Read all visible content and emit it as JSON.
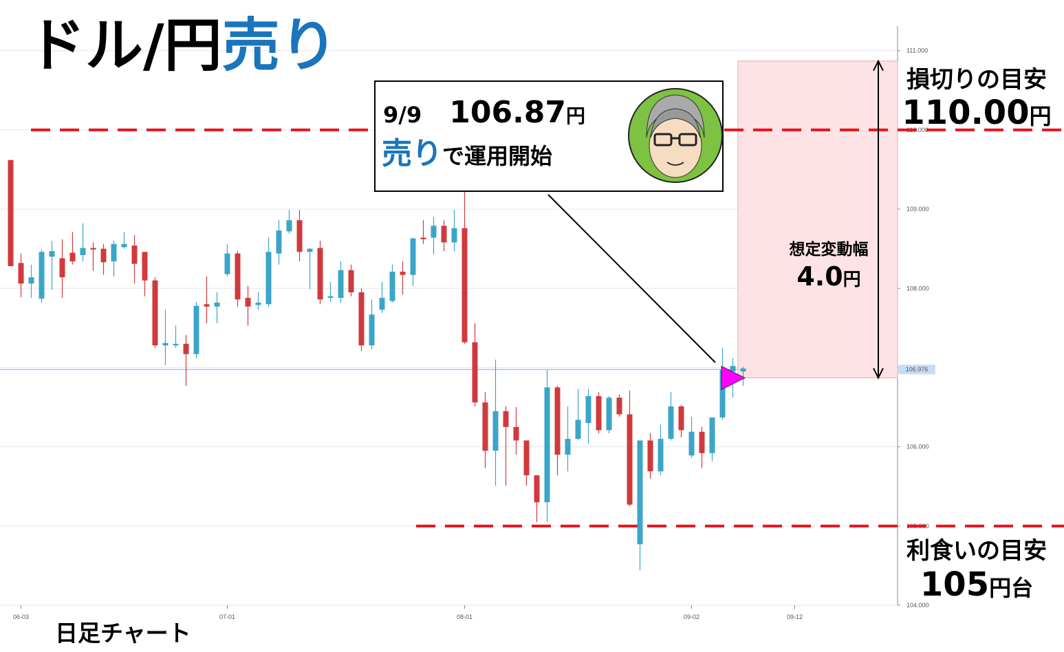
{
  "chart_data": {
    "type": "candlestick",
    "title": "ドル/円",
    "title_highlight": "売り",
    "x_label": "日足チャート",
    "categories": [
      null,
      "06-03",
      null,
      null,
      null,
      null,
      null,
      null,
      null,
      null,
      null,
      null,
      null,
      null,
      null,
      null,
      null,
      null,
      null,
      null,
      null,
      "07-01",
      null,
      null,
      null,
      null,
      null,
      null,
      null,
      null,
      null,
      null,
      null,
      null,
      null,
      null,
      null,
      null,
      null,
      null,
      null,
      null,
      null,
      null,
      "08-01",
      null,
      null,
      null,
      null,
      null,
      null,
      null,
      null,
      null,
      null,
      null,
      null,
      null,
      null,
      null,
      null,
      null,
      null,
      null,
      null,
      null,
      "09-02",
      null,
      null,
      null,
      null,
      null,
      null,
      null,
      null,
      null,
      "09-12",
      null,
      null,
      null,
      null,
      null,
      null,
      null,
      null,
      null
    ],
    "open": [
      109.62,
      108.32,
      108.06,
      107.87,
      108.4,
      108.38,
      108.45,
      108.42,
      108.51,
      108.5,
      108.34,
      108.52,
      108.54,
      108.46,
      108.1,
      107.28,
      107.28,
      107.3,
      107.17,
      107.8,
      107.77,
      108.18,
      108.44,
      107.88,
      107.79,
      107.8,
      108.44,
      108.72,
      108.86,
      108.46,
      108.51,
      107.88,
      107.88,
      108.23,
      107.95,
      107.28,
      107.73,
      107.84,
      108.21,
      108.17,
      108.64,
      108.64,
      108.79,
      108.58,
      108.76,
      107.32,
      106.56,
      105.95,
      106.45,
      106.25,
      106.08,
      105.64,
      105.3,
      106.75,
      105.9,
      106.1,
      106.3,
      106.64,
      106.21,
      106.62,
      106.41,
      104.77,
      106.08,
      105.69,
      106.1,
      106.51,
      105.89,
      106.19,
      105.92,
      106.37,
      106.95,
      106.95,
      null,
      null,
      null,
      null,
      null,
      null,
      null,
      null,
      null,
      null,
      null,
      null,
      null,
      null
    ],
    "high": [
      109.62,
      108.44,
      108.3,
      108.49,
      108.6,
      108.62,
      108.71,
      108.82,
      108.58,
      108.56,
      108.6,
      108.71,
      108.67,
      108.46,
      108.14,
      107.73,
      107.53,
      107.41,
      107.83,
      108.15,
      107.95,
      108.56,
      108.47,
      108.03,
      107.95,
      108.64,
      108.86,
      108.99,
      108.99,
      108.51,
      108.6,
      108.08,
      108.34,
      108.3,
      108.0,
      107.86,
      108.08,
      108.3,
      108.34,
      108.64,
      108.86,
      108.9,
      108.86,
      108.99,
      109.25,
      107.56,
      106.69,
      107.1,
      106.51,
      106.5,
      106.08,
      105.64,
      106.97,
      106.77,
      106.51,
      106.73,
      106.73,
      106.69,
      106.64,
      106.66,
      106.71,
      106.08,
      106.17,
      106.28,
      106.69,
      106.53,
      106.38,
      106.25,
      106.37,
      107.25,
      107.12,
      107.01,
      null,
      null,
      null,
      null,
      null,
      null,
      null,
      null,
      null,
      null,
      null,
      null,
      null,
      null
    ],
    "low": [
      108.28,
      107.89,
      107.88,
      107.82,
      107.98,
      107.88,
      108.3,
      108.34,
      108.22,
      108.17,
      108.15,
      108.5,
      108.06,
      107.9,
      107.25,
      107.03,
      107.25,
      106.77,
      107.12,
      107.56,
      107.56,
      108.15,
      107.77,
      107.53,
      107.73,
      107.77,
      108.3,
      108.69,
      108.34,
      107.99,
      107.8,
      107.83,
      107.82,
      107.9,
      107.21,
      107.23,
      107.69,
      107.82,
      107.92,
      108.03,
      108.56,
      108.43,
      108.47,
      108.47,
      107.3,
      106.51,
      105.73,
      105.51,
      105.51,
      105.9,
      105.51,
      105.05,
      105.05,
      105.64,
      105.69,
      106.08,
      106.04,
      106.17,
      106.17,
      106.38,
      105.25,
      104.44,
      105.6,
      105.64,
      106.08,
      106.12,
      105.86,
      105.73,
      105.82,
      106.34,
      106.62,
      106.77,
      null,
      null,
      null,
      null,
      null,
      null,
      null,
      null,
      null,
      null,
      null,
      null,
      null,
      null
    ],
    "close": [
      108.28,
      108.06,
      108.14,
      108.46,
      108.47,
      108.14,
      108.34,
      108.51,
      108.49,
      108.33,
      108.56,
      108.56,
      108.31,
      108.1,
      107.28,
      107.31,
      107.3,
      107.17,
      107.78,
      107.77,
      107.82,
      108.44,
      107.86,
      107.77,
      107.82,
      108.46,
      108.73,
      108.86,
      108.46,
      108.5,
      107.86,
      107.9,
      108.23,
      107.95,
      107.28,
      107.67,
      107.88,
      108.21,
      108.17,
      108.63,
      108.62,
      108.79,
      108.58,
      108.76,
      107.32,
      106.56,
      105.95,
      106.45,
      106.25,
      106.08,
      105.64,
      105.3,
      106.75,
      105.9,
      106.1,
      106.34,
      106.64,
      106.21,
      106.62,
      106.41,
      105.27,
      106.08,
      105.69,
      106.1,
      106.51,
      106.21,
      106.19,
      105.92,
      106.37,
      106.97,
      107.02,
      106.99,
      null,
      null,
      null,
      null,
      null,
      null,
      null,
      null,
      null,
      null,
      null,
      null,
      null,
      null
    ],
    "up_color": "#3ba5c9",
    "down_color": "#d03a3d",
    "grid": true,
    "ylim": [
      104,
      111.31
    ],
    "yticks": [
      {
        "value": 104,
        "label": "104.000"
      },
      {
        "value": 105,
        "label": "105.000"
      },
      {
        "value": 106,
        "label": "106.000"
      },
      {
        "value": 107,
        "label": "107.000"
      },
      {
        "value": 108,
        "label": "108.000"
      },
      {
        "value": 109,
        "label": "109.000"
      },
      {
        "value": 110,
        "label": "110.000"
      },
      {
        "value": 111,
        "label": "111.000"
      }
    ],
    "current_price": 106.976,
    "callout": {
      "date": "9/9",
      "price": {
        "value": 106.87,
        "label": "106.87"
      },
      "unit": "円",
      "action": "売り",
      "action_rest": "で運用開始"
    },
    "stop_loss": {
      "caption": "損切りの目安",
      "value": 110,
      "label": "110.00",
      "unit": "円"
    },
    "take_profit": {
      "caption": "利食いの目安",
      "value": 105,
      "label": "105",
      "unit": "円台"
    },
    "range": {
      "caption": "想定変動幅",
      "value": 4,
      "label": "4.0",
      "unit": "円"
    }
  }
}
